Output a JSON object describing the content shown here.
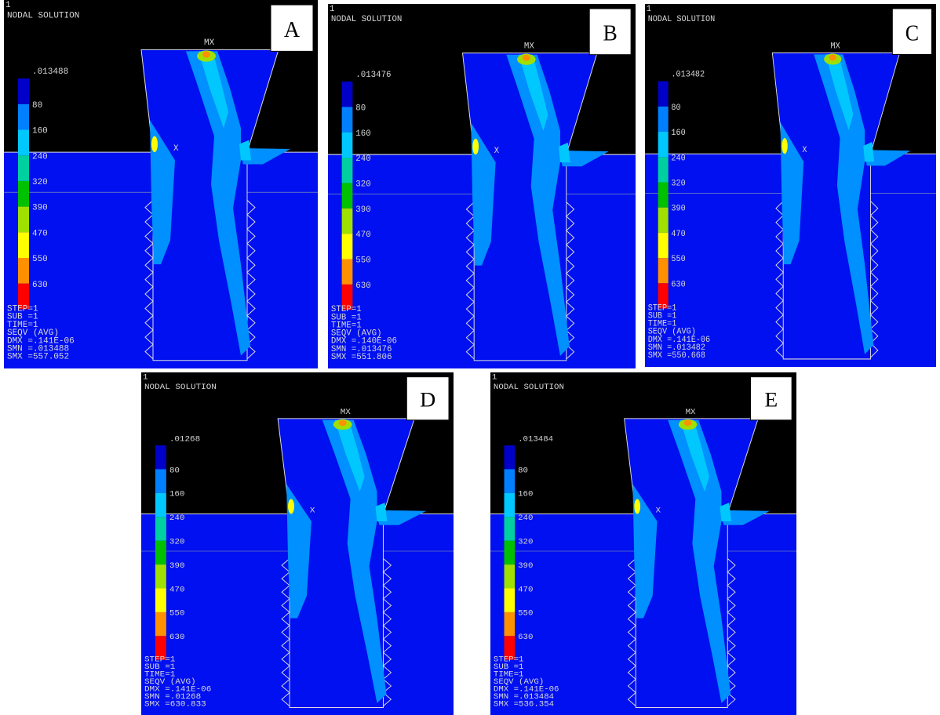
{
  "panels": [
    {
      "label": "A",
      "frame": "1",
      "title": "NODAL SOLUTION",
      "max_label": "MX",
      "node_label": "X",
      "scale_top": ".013488",
      "scale": [
        "80",
        "160",
        "240",
        "320",
        "390",
        "470",
        "550",
        "630"
      ],
      "stats": [
        "STEP=1",
        "SUB =1",
        "TIME=1",
        "SEQV      (AVG)",
        "DMX =.141E-06",
        "SMN =.013488",
        "SMX =557.052"
      ]
    },
    {
      "label": "B",
      "frame": "1",
      "title": "NODAL SOLUTION",
      "max_label": "MX",
      "node_label": "X",
      "scale_top": ".013476",
      "scale": [
        "80",
        "160",
        "240",
        "320",
        "390",
        "470",
        "550",
        "630"
      ],
      "stats": [
        "STEP=1",
        "SUB =1",
        "TIME=1",
        "SEQV      (AVG)",
        "DMX =.140E-06",
        "SMN =.013476",
        "SMX =551.806"
      ]
    },
    {
      "label": "C",
      "frame": "1",
      "title": "NODAL SOLUTION",
      "max_label": "MX",
      "node_label": "X",
      "scale_top": ".013482",
      "scale": [
        "80",
        "160",
        "240",
        "320",
        "390",
        "470",
        "550",
        "630"
      ],
      "stats": [
        "STEP=1",
        "SUB =1",
        "TIME=1",
        "SEQV      (AVG)",
        "DMX =.141E-06",
        "SMN =.013482",
        "SMX =550.668"
      ]
    },
    {
      "label": "D",
      "frame": "1",
      "title": "NODAL SOLUTION",
      "max_label": "MX",
      "node_label": "X",
      "scale_top": ".01268",
      "scale": [
        "80",
        "160",
        "240",
        "320",
        "390",
        "470",
        "550",
        "630"
      ],
      "stats": [
        "STEP=1",
        "SUB =1",
        "TIME=1",
        "SEQV      (AVG)",
        "DMX =.141E-06",
        "SMN =.01268",
        "SMX =630.833"
      ]
    },
    {
      "label": "E",
      "frame": "1",
      "title": "NODAL SOLUTION",
      "max_label": "MX",
      "node_label": "X",
      "scale_top": ".013484",
      "scale": [
        "80",
        "160",
        "240",
        "320",
        "390",
        "470",
        "550",
        "630"
      ],
      "stats": [
        "STEP=1",
        "SUB =1",
        "TIME=1",
        "SEQV      (AVG)",
        "DMX =.141E-06",
        "SMN =.013484",
        "SMX =536.354"
      ]
    }
  ]
}
